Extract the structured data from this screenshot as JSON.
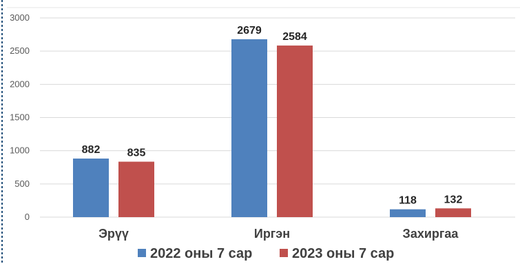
{
  "chart_data": {
    "type": "bar",
    "categories": [
      "Эрүү",
      "Иргэн",
      "Захиргаа"
    ],
    "series": [
      {
        "name": "2022 оны 7 сар",
        "values": [
          882,
          2679,
          118
        ],
        "color": "#4F81BD"
      },
      {
        "name": "2023 оны 7 сар",
        "values": [
          835,
          2584,
          132
        ],
        "color": "#C0504D"
      }
    ],
    "ylim": [
      0,
      3000
    ],
    "yticks": [
      0,
      500,
      1000,
      1500,
      2000,
      2500,
      3000
    ],
    "grid": true,
    "legend": "bottom",
    "title": "",
    "xlabel": "",
    "ylabel": ""
  },
  "colors": {
    "grid": "#D9D9D9",
    "border": "#1F4E79"
  }
}
